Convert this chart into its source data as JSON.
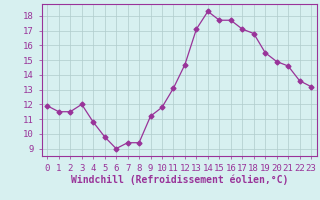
{
  "x": [
    0,
    1,
    2,
    3,
    4,
    5,
    6,
    7,
    8,
    9,
    10,
    11,
    12,
    13,
    14,
    15,
    16,
    17,
    18,
    19,
    20,
    21,
    22,
    23
  ],
  "y": [
    11.9,
    11.5,
    11.5,
    12.0,
    10.8,
    9.8,
    9.0,
    9.4,
    9.4,
    11.2,
    11.8,
    13.1,
    14.7,
    17.1,
    18.3,
    17.7,
    17.7,
    17.1,
    16.8,
    15.5,
    14.9,
    14.6,
    13.6,
    13.2
  ],
  "line_color": "#993399",
  "marker": "D",
  "marker_size": 2.5,
  "bg_color": "#d7f0f0",
  "grid_color": "#b0cccc",
  "xlabel": "Windchill (Refroidissement éolien,°C)",
  "xlabel_fontsize": 7,
  "ytick_values": [
    9,
    10,
    11,
    12,
    13,
    14,
    15,
    16,
    17,
    18
  ],
  "ylim": [
    8.5,
    18.8
  ],
  "xlim": [
    -0.5,
    23.5
  ],
  "tick_fontsize": 6.5,
  "spine_color": "#993399"
}
